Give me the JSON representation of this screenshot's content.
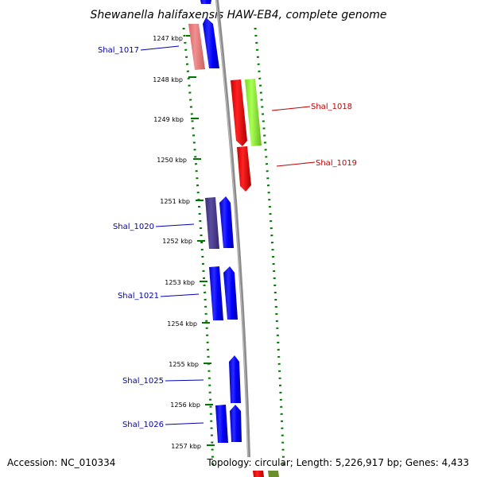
{
  "title": "Shewanella halifaxensis HAW-EB4, complete genome",
  "footer": {
    "accession": "Accession: NC_010334",
    "topology": "Topology: circular; Length: 5,226,917 bp; Genes: 4,433"
  },
  "ticks": [
    "1247 kbp",
    "1248 kbp",
    "1249 kbp",
    "1250 kbp",
    "1251 kbp",
    "1252 kbp",
    "1253 kbp",
    "1254 kbp",
    "1255 kbp",
    "1256 kbp",
    "1257 kbp"
  ],
  "genes": {
    "Shal_1017": "Shal_1017",
    "Shal_1018": "Shal_1018",
    "Shal_1019": "Shal_1019",
    "Shal_1020": "Shal_1020",
    "Shal_1021": "Shal_1021",
    "Shal_1025": "Shal_1025",
    "Shal_1026": "Shal_1026"
  },
  "colors": {
    "forward_label": "#c00000",
    "reverse_label": "#0000b0",
    "forward_gene": "#ff0000",
    "reverse_gene": "#0000ff",
    "pink_gene": "#f08080",
    "lime_gene": "#99ff33",
    "purple_gene": "#4b3c8c",
    "axis_line": "#8c8c8c",
    "tick_mark": "#007700"
  }
}
